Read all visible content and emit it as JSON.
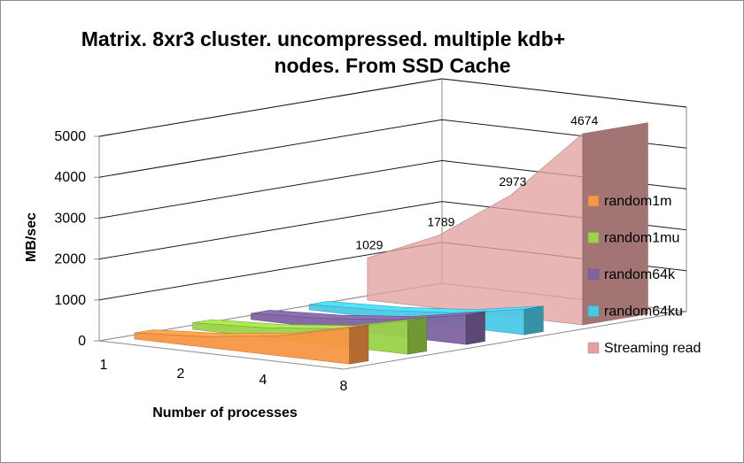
{
  "chart_data": {
    "type": "area",
    "style": "3d",
    "title_lines": [
      "Matrix. 8xr3 cluster. uncompressed. multiple kdb+",
      "nodes. From SSD Cache"
    ],
    "xlabel": "Number of processes",
    "ylabel": "MB/sec",
    "categories": [
      "1",
      "2",
      "4",
      "8"
    ],
    "ylim": [
      0,
      5000
    ],
    "yticks": [
      "0",
      "1000",
      "2000",
      "3000",
      "4000",
      "5000"
    ],
    "grid": true,
    "legend_position": "right",
    "series": [
      {
        "name": "random1m",
        "color": "#f79646",
        "values": [
          150,
          260,
          480,
          880
        ]
      },
      {
        "name": "random1mu",
        "color": "#9bd34a",
        "values": [
          160,
          240,
          420,
          820
        ]
      },
      {
        "name": "random64k",
        "color": "#8064a2",
        "values": [
          150,
          230,
          400,
          720
        ]
      },
      {
        "name": "random64ku",
        "color": "#4bc8e6",
        "values": [
          130,
          190,
          330,
          620
        ]
      },
      {
        "name": "Streaming read",
        "color": "#e3a1a1",
        "values": [
          1029,
          1789,
          2973,
          4674
        ],
        "data_labels": [
          "1029",
          "1789",
          "2973",
          "4674"
        ]
      }
    ]
  }
}
